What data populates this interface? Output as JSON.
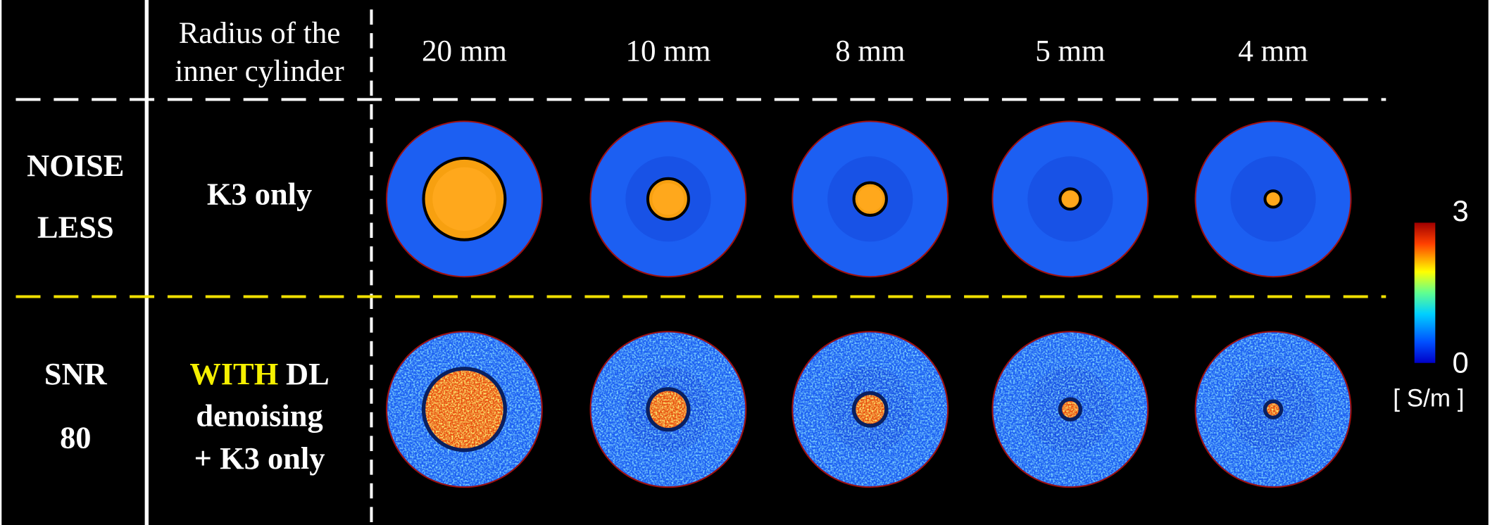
{
  "header": {
    "radius_label": [
      "Radius of the",
      "inner cylinder"
    ],
    "columns": [
      "20 mm",
      "10 mm",
      "8 mm",
      "5 mm",
      "4 mm"
    ]
  },
  "rows": [
    {
      "condition": [
        "NOISE",
        "LESS"
      ],
      "method": [
        "K3 only"
      ]
    },
    {
      "condition": [
        "SNR",
        "80"
      ],
      "method_highlight": "WITH",
      "method": [
        "DL",
        "denoising",
        "+ K3 only"
      ]
    }
  ],
  "colorbar": {
    "ticks": [
      3,
      0
    ],
    "unit": "[ S/m ]"
  }
}
